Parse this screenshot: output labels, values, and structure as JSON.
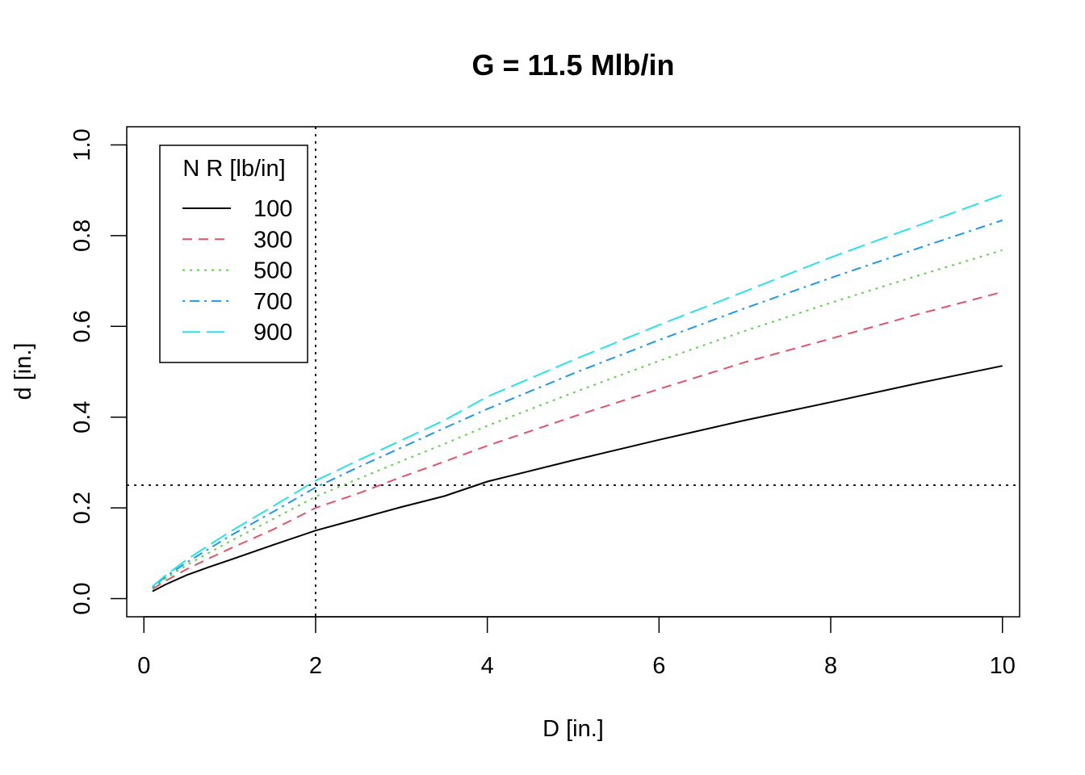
{
  "chart_data": {
    "type": "line",
    "title": "G = 11.5 Mlb/in",
    "xlabel": "D [in.]",
    "ylabel": "d [in.]",
    "xlim": [
      -0.2,
      10.2
    ],
    "ylim": [
      -0.04,
      1.04
    ],
    "xticks": [
      0,
      2,
      4,
      6,
      8,
      10
    ],
    "yticks": [
      0.0,
      0.2,
      0.4,
      0.6,
      0.8,
      1.0
    ],
    "xtick_labels": [
      "0",
      "2",
      "4",
      "6",
      "8",
      "10"
    ],
    "ytick_labels": [
      "0.0",
      "0.2",
      "0.4",
      "0.6",
      "0.8",
      "1.0"
    ],
    "grid": false,
    "x": [
      0.1,
      0.25,
      0.5,
      0.75,
      1,
      1.5,
      2,
      2.5,
      3,
      3.5,
      4,
      5,
      6,
      7,
      8,
      9,
      10
    ],
    "series": [
      {
        "name": "100",
        "color": "#000000",
        "dash": "solid",
        "values": [
          0.016,
          0.031,
          0.052,
          0.069,
          0.085,
          0.118,
          0.15,
          0.176,
          0.202,
          0.226,
          0.258,
          0.305,
          0.35,
          0.393,
          0.433,
          0.474,
          0.513
        ]
      },
      {
        "name": "300",
        "color": "#DF536B",
        "dash": "dashed",
        "values": [
          0.021,
          0.039,
          0.065,
          0.088,
          0.11,
          0.152,
          0.2,
          0.232,
          0.268,
          0.302,
          0.337,
          0.401,
          0.462,
          0.521,
          0.573,
          0.626,
          0.676
        ]
      },
      {
        "name": "500",
        "color": "#61D04F",
        "dash": "dotted",
        "values": [
          0.023,
          0.044,
          0.074,
          0.1,
          0.126,
          0.175,
          0.225,
          0.264,
          0.303,
          0.341,
          0.381,
          0.454,
          0.524,
          0.59,
          0.652,
          0.711,
          0.768
        ]
      },
      {
        "name": "700",
        "color": "#2297E6",
        "dash": "dotdash",
        "values": [
          0.025,
          0.048,
          0.08,
          0.109,
          0.138,
          0.191,
          0.245,
          0.29,
          0.333,
          0.376,
          0.418,
          0.496,
          0.57,
          0.64,
          0.707,
          0.771,
          0.834
        ]
      },
      {
        "name": "900",
        "color": "#28E2E5",
        "dash": "longdash",
        "values": [
          0.027,
          0.051,
          0.086,
          0.117,
          0.147,
          0.203,
          0.26,
          0.305,
          0.349,
          0.393,
          0.445,
          0.526,
          0.603,
          0.677,
          0.752,
          0.821,
          0.89
        ]
      }
    ],
    "reference_lines": {
      "vertical_x": 2,
      "horizontal_y": 0.25,
      "style": "dotted"
    },
    "legend": {
      "title": "N R [lb/in]",
      "position": "top-left"
    }
  }
}
